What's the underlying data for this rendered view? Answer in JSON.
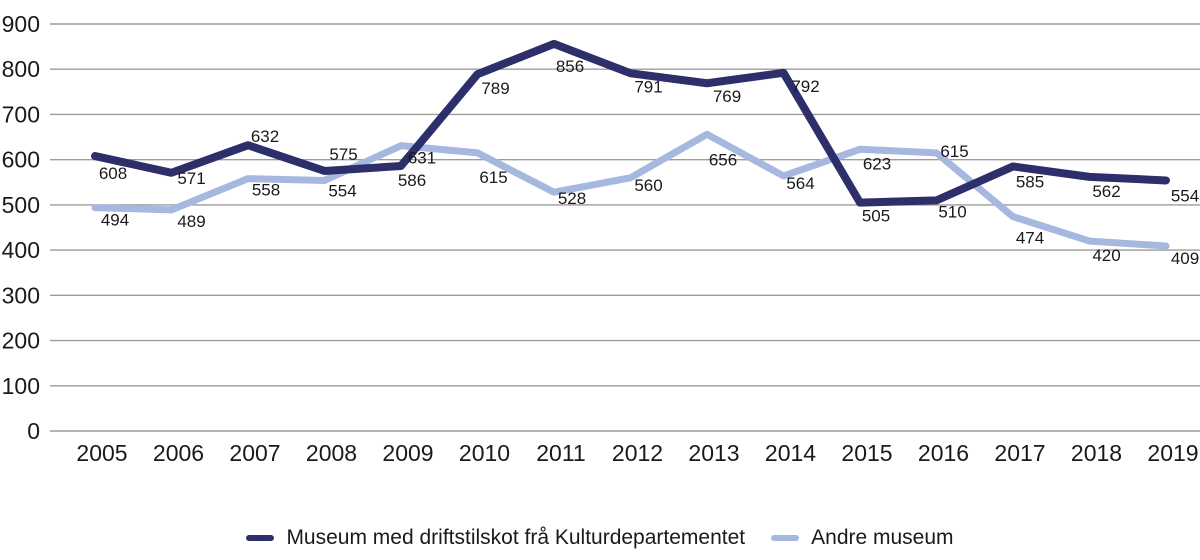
{
  "chart_data": {
    "type": "line",
    "title": "",
    "xlabel": "",
    "ylabel": "",
    "categories": [
      "2005",
      "2006",
      "2007",
      "2008",
      "2009",
      "2010",
      "2011",
      "2012",
      "2013",
      "2014",
      "2015",
      "2016",
      "2017",
      "2018",
      "2019"
    ],
    "series": [
      {
        "name": "Museum med driftstilskot frå Kulturdepartementet",
        "color": "#2D2F6B",
        "values": [
          608,
          571,
          632,
          575,
          586,
          789,
          856,
          791,
          769,
          792,
          505,
          510,
          585,
          562,
          554
        ]
      },
      {
        "name": "Andre museum",
        "color": "#A6B7E0",
        "values": [
          494,
          489,
          558,
          554,
          631,
          615,
          528,
          560,
          656,
          564,
          623,
          615,
          474,
          420,
          409
        ]
      }
    ],
    "ylim": [
      0,
      900
    ],
    "y_ticks": [
      0,
      100,
      200,
      300,
      400,
      500,
      600,
      700,
      800,
      900
    ],
    "grid": true,
    "data_labels": true,
    "legend_position": "bottom",
    "gridline_color": "#9C9C9C",
    "text_color": "#1A1A1A",
    "background_color": "#FFFFFF"
  }
}
